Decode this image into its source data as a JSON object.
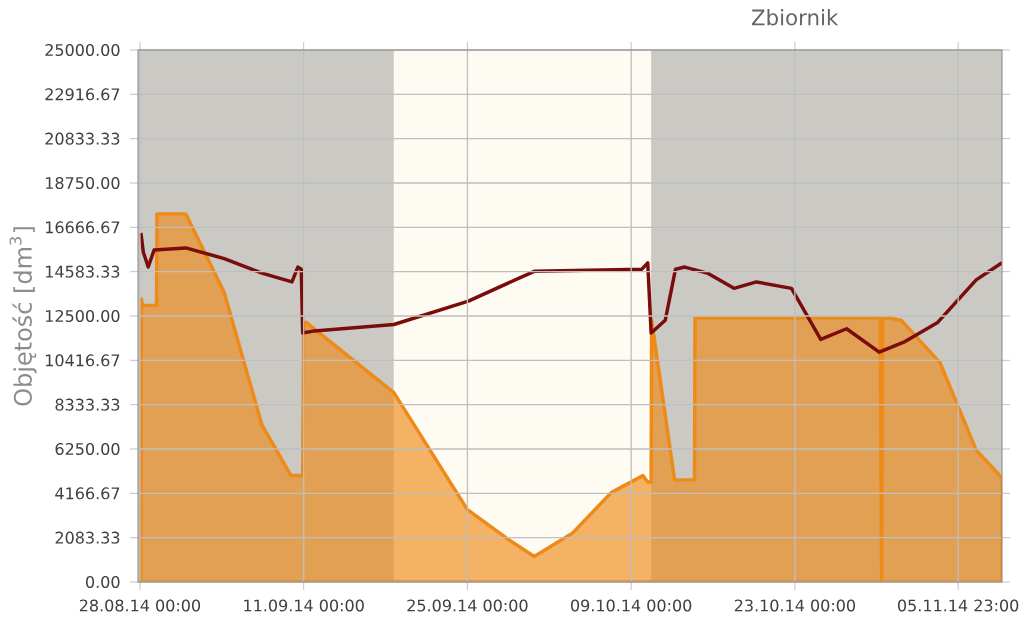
{
  "chart_data": {
    "type": "line",
    "title": "Zbiornik",
    "ylabel": "Objętość [dm$^{3}$]",
    "xlim": [
      "2014-08-27T20:00",
      "2014-11-09T17:00"
    ],
    "xticks": [
      {
        "value": "2014-08-28T00:00",
        "label": "28.08.14 00:00"
      },
      {
        "value": "2014-09-11T00:00",
        "label": "11.09.14 00:00"
      },
      {
        "value": "2014-09-25T00:00",
        "label": "25.09.14 00:00"
      },
      {
        "value": "2014-10-09T00:00",
        "label": "09.10.14 00:00"
      },
      {
        "value": "2014-10-23T00:00",
        "label": "23.10.14 00:00"
      },
      {
        "value": "2014-11-05T23:00",
        "label": "05.11.14 23:00"
      }
    ],
    "ylim": [
      0,
      25000
    ],
    "yticks": [
      {
        "value": 0,
        "label": "0.00"
      },
      {
        "value": 2083.33,
        "label": "2083.33"
      },
      {
        "value": 4166.67,
        "label": "4166.67"
      },
      {
        "value": 6250,
        "label": "6250.00"
      },
      {
        "value": 8333.33,
        "label": "8333.33"
      },
      {
        "value": 10416.67,
        "label": "10416.67"
      },
      {
        "value": 12500,
        "label": "12500.00"
      },
      {
        "value": 14583.33,
        "label": "14583.33"
      },
      {
        "value": 16666.67,
        "label": "16666.67"
      },
      {
        "value": 18750,
        "label": "18750.00"
      },
      {
        "value": 20833.33,
        "label": "20833.33"
      },
      {
        "value": 22916.67,
        "label": "22916.67"
      },
      {
        "value": 25000,
        "label": "25000.00"
      }
    ],
    "grid": true,
    "bands": [
      {
        "axis": "x",
        "from": "2014-08-27T20:00",
        "to": "2014-09-18T17:00",
        "color": "#cbc9c4"
      },
      {
        "axis": "x",
        "from": "2014-09-18T17:00",
        "to": "2014-10-10T17:00",
        "color": "#fefbf2"
      },
      {
        "axis": "x",
        "from": "2014-10-10T17:00",
        "to": "2014-11-09T17:00",
        "color": "#cbc9c4"
      }
    ],
    "series": [
      {
        "type": "area",
        "color": "#ee8a18",
        "x": [
          "2014-08-28T02:00",
          "2014-08-28T03:00",
          "2014-08-28T05:00",
          "2014-08-29T10:00",
          "2014-08-29T11:00",
          "2014-08-31T22:00",
          "2014-09-04T05:00",
          "2014-09-07T10:00",
          "2014-09-09T22:00",
          "2014-09-10T22:00",
          "2014-09-11T00:00",
          "2014-09-11T05:00",
          "2014-09-18T17:00",
          "2014-09-25T00:00",
          "2014-09-28T12:00",
          "2014-09-30T17:00",
          "2014-10-04T00:00",
          "2014-10-07T07:00",
          "2014-10-10T00:00",
          "2014-10-10T10:00",
          "2014-10-10T17:00",
          "2014-10-10T18:00",
          "2014-10-12T17:00",
          "2014-10-14T10:00",
          "2014-10-14T11:00",
          "2014-10-30T07:00",
          "2014-10-30T10:00",
          "2014-10-30T12:00",
          "2014-10-31T02:00",
          "2014-11-01T02:00",
          "2014-11-04T10:00",
          "2014-11-07T12:00",
          "2014-11-09T17:00"
        ],
        "values": [
          1500,
          13300,
          13000,
          13000,
          17300,
          17300,
          13600,
          7400,
          5000,
          5000,
          12100,
          12200,
          8900,
          3400,
          2000,
          1200,
          2300,
          4200,
          5000,
          4700,
          4700,
          12300,
          4800,
          4800,
          12400,
          12400,
          0,
          12400,
          12400,
          12300,
          10300,
          6200,
          4900
        ]
      },
      {
        "color": "#7a0c0c",
        "x": [
          "2014-08-28T02:00",
          "2014-08-28T07:00",
          "2014-08-28T17:00",
          "2014-08-29T05:00",
          "2014-08-31T22:00",
          "2014-09-04T05:00",
          "2014-09-07T12:00",
          "2014-09-10T00:00",
          "2014-09-10T12:00",
          "2014-09-10T19:00",
          "2014-09-10T22:00",
          "2014-09-11T22:00",
          "2014-09-18T17:00",
          "2014-09-25T02:00",
          "2014-09-30T17:00",
          "2014-10-09T22:00",
          "2014-10-10T10:00",
          "2014-10-10T17:00",
          "2014-10-11T22:00",
          "2014-10-12T19:00",
          "2014-10-13T14:00",
          "2014-10-15T14:00",
          "2014-10-17T19:00",
          "2014-10-19T17:00",
          "2014-10-22T17:00",
          "2014-10-25T05:00",
          "2014-10-27T10:00",
          "2014-10-30T05:00",
          "2014-11-01T10:00",
          "2014-11-04T05:00",
          "2014-11-07T12:00",
          "2014-11-09T17:00"
        ],
        "values": [
          16400,
          15500,
          14800,
          15600,
          15700,
          15200,
          14500,
          14100,
          14800,
          14700,
          11700,
          11800,
          12100,
          13200,
          14600,
          14700,
          15000,
          11700,
          12300,
          14700,
          14800,
          14500,
          13800,
          14100,
          13800,
          11400,
          11900,
          10800,
          11300,
          12200,
          14200,
          15000
        ]
      }
    ]
  }
}
